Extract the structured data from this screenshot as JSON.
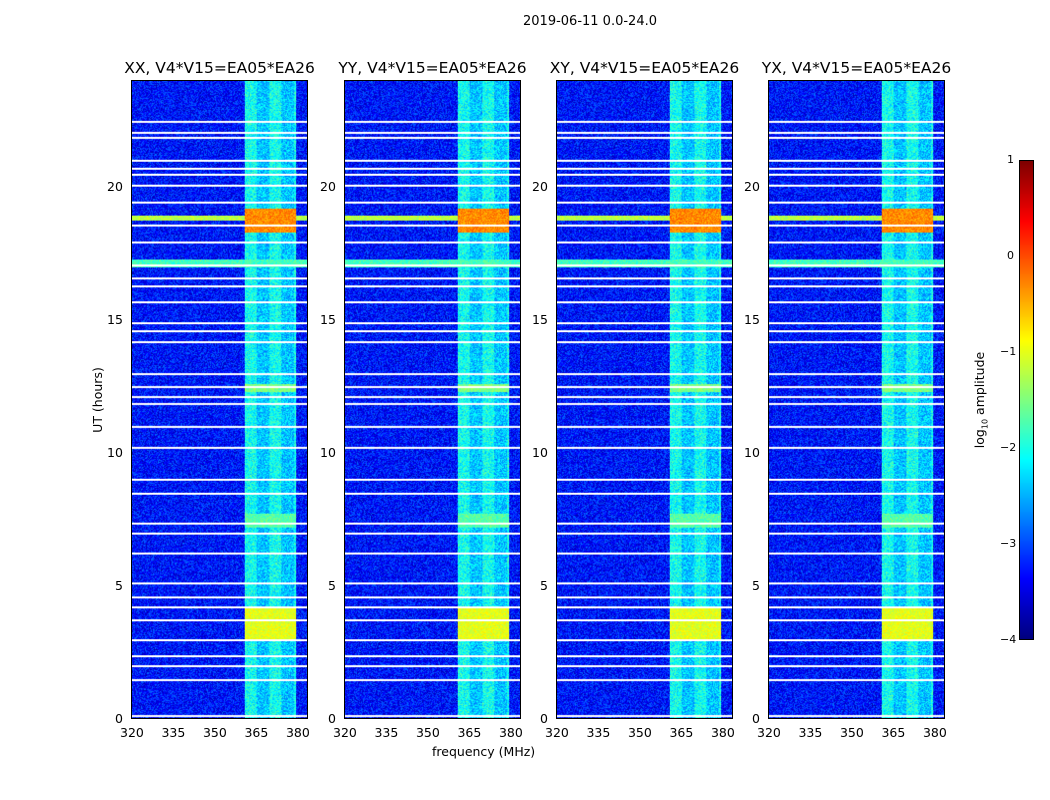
{
  "chart_data": {
    "type": "heatmap",
    "title": "2019-06-11 0.0-24.0",
    "xlabel": "frequency (MHz)",
    "ylabel": "UT (hours)",
    "xlim": [
      320,
      384
    ],
    "ylim": [
      0,
      24
    ],
    "xticks": [
      "320",
      "335",
      "350",
      "365",
      "380"
    ],
    "yticks": [
      "0",
      "5",
      "10",
      "15",
      "20"
    ],
    "panels": [
      {
        "title": "XX, V4*V15=EA05*EA26"
      },
      {
        "title": "YY, V4*V15=EA05*EA26"
      },
      {
        "title": "XY, V4*V15=EA05*EA26"
      },
      {
        "title": "YX, V4*V15=EA05*EA26"
      }
    ],
    "colorbar": {
      "label_main": "log",
      "label_sub": "10",
      "label_rest": " amplitude",
      "range": [
        -4,
        1
      ],
      "ticks": [
        "1",
        "0",
        "−1",
        "−2",
        "−3",
        "−4"
      ],
      "colormap": "jet"
    },
    "background_level": -3.3,
    "rfi_band_mhz": [
      361,
      380
    ],
    "rfi_level": -2.4,
    "bright_events": [
      {
        "t": [
          18.3,
          19.2
        ],
        "level": -0.3,
        "band_only": true
      },
      {
        "t": [
          18.75,
          18.95
        ],
        "level": -1.2,
        "band_only": false
      },
      {
        "t": [
          17.0,
          17.3
        ],
        "level": -1.8,
        "band_only": false
      },
      {
        "t": [
          3.0,
          4.2
        ],
        "level": -1.0,
        "band_only": true
      },
      {
        "t": [
          7.2,
          7.7
        ],
        "level": -1.7,
        "band_only": true
      },
      {
        "t": [
          12.3,
          12.6
        ],
        "level": -1.5,
        "band_only": true
      }
    ],
    "flagged_hours": [
      22.5,
      22.1,
      21.9,
      21.05,
      20.75,
      20.5,
      20.1,
      19.45,
      18.6,
      17.95,
      17.1,
      16.6,
      16.3,
      15.7,
      14.9,
      14.6,
      14.2,
      13.0,
      12.5,
      12.15,
      11.85,
      11.0,
      10.2,
      9.0,
      8.5,
      7.35,
      7.0,
      6.25,
      5.1,
      4.6,
      4.2,
      3.7,
      2.95,
      2.35,
      2.0,
      1.45,
      0.1
    ]
  }
}
